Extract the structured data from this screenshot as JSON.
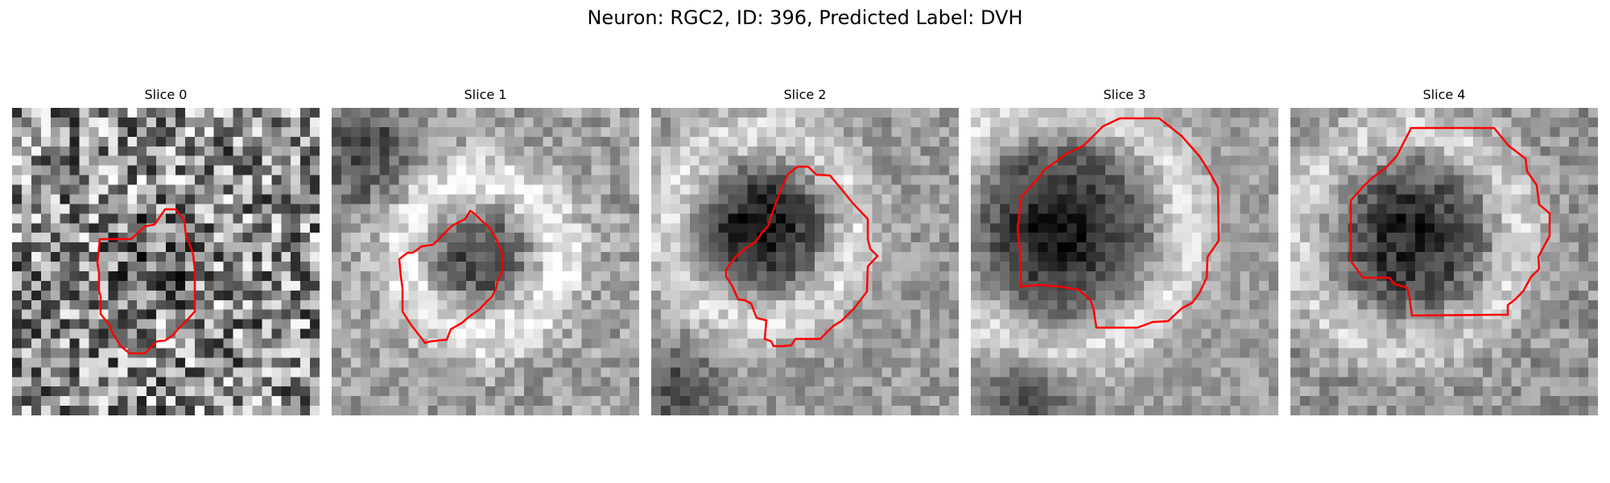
{
  "figure": {
    "title": "Neuron: RGC2, ID: 396, Predicted Label: DVH",
    "roi_color": "#ff0000",
    "colormap": "gray"
  },
  "slices": [
    {
      "label": "Slice 0"
    },
    {
      "label": "Slice 1"
    },
    {
      "label": "Slice 2"
    },
    {
      "label": "Slice 3"
    },
    {
      "label": "Slice 4"
    }
  ]
}
